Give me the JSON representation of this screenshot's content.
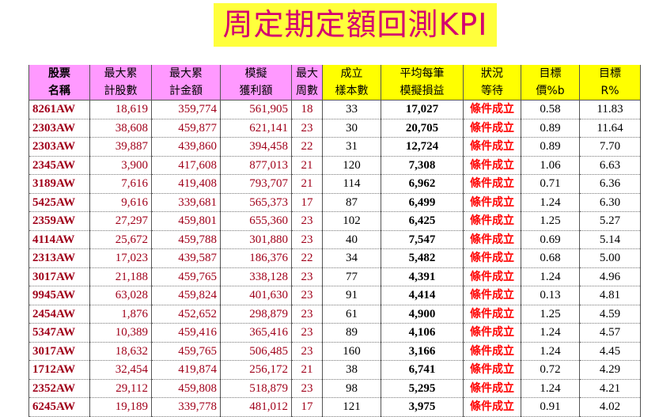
{
  "title": "周定期定額回測KPI",
  "table": {
    "header_row1": [
      "股票",
      "最大累",
      "最大累",
      "模擬",
      "最大",
      "成立",
      "平均每筆",
      "狀況",
      "目標",
      "目標"
    ],
    "header_row2": [
      "名稱",
      "計股數",
      "計金額",
      "獲利額",
      "周數",
      "樣本數",
      "模擬損益",
      "等待",
      "價%b",
      "R%"
    ],
    "rows": [
      [
        "8261AW",
        "18,619",
        "359,774",
        "561,905",
        "18",
        "33",
        "17,027",
        "條件成立",
        "0.58",
        "11.83"
      ],
      [
        "2303AW",
        "38,608",
        "459,877",
        "621,141",
        "23",
        "30",
        "20,705",
        "條件成立",
        "0.89",
        "11.64"
      ],
      [
        "2303AW",
        "39,887",
        "439,860",
        "394,458",
        "22",
        "31",
        "12,724",
        "條件成立",
        "0.89",
        "7.70"
      ],
      [
        "2345AW",
        "3,900",
        "417,608",
        "877,013",
        "21",
        "120",
        "7,308",
        "條件成立",
        "1.06",
        "6.63"
      ],
      [
        "3189AW",
        "7,616",
        "419,408",
        "793,707",
        "21",
        "114",
        "6,962",
        "條件成立",
        "0.71",
        "6.36"
      ],
      [
        "5425AW",
        "9,616",
        "339,681",
        "565,373",
        "17",
        "87",
        "6,499",
        "條件成立",
        "1.24",
        "6.30"
      ],
      [
        "2359AW",
        "27,297",
        "459,801",
        "655,360",
        "23",
        "102",
        "6,425",
        "條件成立",
        "1.25",
        "5.27"
      ],
      [
        "4114AW",
        "25,672",
        "459,788",
        "301,880",
        "23",
        "40",
        "7,547",
        "條件成立",
        "0.69",
        "5.14"
      ],
      [
        "2313AW",
        "17,023",
        "439,587",
        "186,376",
        "22",
        "34",
        "5,482",
        "條件成立",
        "0.68",
        "5.00"
      ],
      [
        "3017AW",
        "21,188",
        "459,765",
        "338,128",
        "23",
        "77",
        "4,391",
        "條件成立",
        "1.24",
        "4.96"
      ],
      [
        "9945AW",
        "63,028",
        "459,824",
        "401,630",
        "23",
        "91",
        "4,414",
        "條件成立",
        "0.13",
        "4.81"
      ],
      [
        "2454AW",
        "1,876",
        "452,652",
        "298,879",
        "23",
        "61",
        "4,900",
        "條件成立",
        "1.25",
        "4.59"
      ],
      [
        "5347AW",
        "10,389",
        "459,416",
        "365,416",
        "23",
        "89",
        "4,106",
        "條件成立",
        "1.24",
        "4.57"
      ],
      [
        "3017AW",
        "18,632",
        "459,765",
        "506,485",
        "23",
        "160",
        "3,166",
        "條件成立",
        "1.24",
        "4.45"
      ],
      [
        "1712AW",
        "32,454",
        "419,874",
        "256,172",
        "21",
        "38",
        "6,741",
        "條件成立",
        "0.72",
        "4.29"
      ],
      [
        "2352AW",
        "29,112",
        "459,808",
        "518,879",
        "23",
        "98",
        "5,295",
        "條件成立",
        "1.24",
        "4.21"
      ],
      [
        "6245AW",
        "19,189",
        "339,778",
        "481,012",
        "17",
        "121",
        "3,975",
        "條件成立",
        "0.91",
        "4.02"
      ]
    ]
  },
  "colors": {
    "title_bg": "#ffff3c",
    "title_text": "#d4006f",
    "header_pink": "#ff99ff",
    "header_yellow": "#ffff00",
    "value_red": "#a0001a",
    "status_red": "#ff0000"
  }
}
